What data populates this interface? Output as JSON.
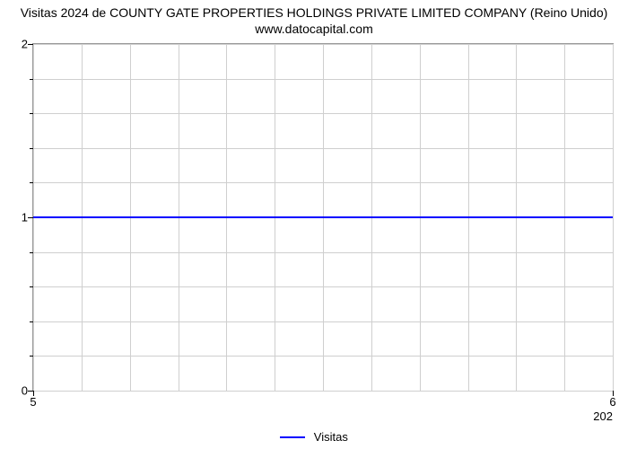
{
  "chart": {
    "type": "line",
    "title_line1": "Visitas 2024 de COUNTY GATE PROPERTIES HOLDINGS PRIVATE LIMITED COMPANY (Reino Unido)",
    "title_line2": "www.datocapital.com",
    "title_fontsize": 14,
    "title_color": "#000000",
    "background_color": "#ffffff",
    "plot_border_color": "#9a9a9a",
    "grid_color": "#cfcfcf",
    "ylim": [
      0,
      2
    ],
    "ytick_major": [
      0,
      1,
      2
    ],
    "ytick_minor_count_between": 4,
    "xlim": [
      5,
      6
    ],
    "xtick_major": [
      5,
      6
    ],
    "x_grid_divisions": 12,
    "x_secondary_label": "202",
    "label_fontsize": 13,
    "label_color": "#000000",
    "series": {
      "name": "Visitas",
      "color": "#0000ff",
      "line_width": 2,
      "x": [
        5,
        6
      ],
      "y": [
        1,
        1
      ]
    },
    "legend": {
      "label": "Visitas",
      "swatch_color": "#0000ff",
      "position": "bottom-center"
    }
  }
}
